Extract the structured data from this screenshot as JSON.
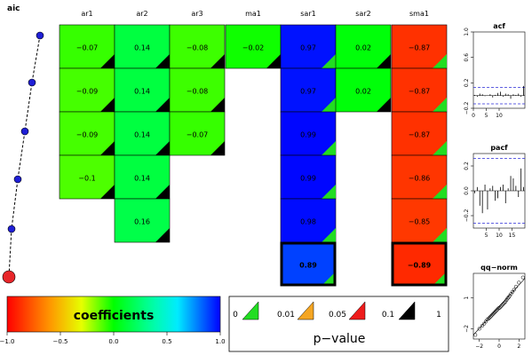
{
  "chart_data": [
    {
      "type": "line",
      "title": "aic",
      "values": [
        1,
        2,
        3,
        4,
        5,
        6
      ],
      "colors": {
        "point": "#1f1fd6",
        "best": "#e8262a"
      }
    },
    {
      "type": "heatmap",
      "columns": [
        "ar1",
        "ar2",
        "ar3",
        "ma1",
        "sar1",
        "sar2",
        "sma1"
      ],
      "rows": [
        [
          -0.07,
          0.14,
          -0.08,
          -0.02,
          0.97,
          0.02,
          -0.87
        ],
        [
          -0.09,
          0.14,
          -0.08,
          null,
          0.97,
          0.02,
          -0.87
        ],
        [
          -0.09,
          0.14,
          -0.07,
          null,
          0.99,
          null,
          -0.87
        ],
        [
          -0.1,
          0.14,
          null,
          null,
          0.99,
          null,
          -0.86
        ],
        [
          null,
          0.16,
          null,
          null,
          0.98,
          null,
          -0.85
        ],
        [
          null,
          null,
          null,
          null,
          0.89,
          null,
          -0.89
        ]
      ],
      "labels": [
        [
          "−0.07",
          "0.14",
          "−0.08",
          "−0.02",
          "0.97",
          "0.02",
          "−0.87"
        ],
        [
          "−0.09",
          "0.14",
          "−0.08",
          "",
          "0.97",
          "0.02",
          "−0.87"
        ],
        [
          "−0.09",
          "0.14",
          "−0.07",
          "",
          "0.99",
          "",
          "−0.87"
        ],
        [
          "−0.1",
          "0.14",
          "",
          "",
          "0.99",
          "",
          "−0.86"
        ],
        [
          "",
          "0.16",
          "",
          "",
          "0.98",
          "",
          "−0.85"
        ],
        [
          "",
          "",
          "",
          "",
          "0.89",
          "",
          "−0.89"
        ]
      ],
      "pvalue_class": [
        [
          "black",
          "black",
          "black",
          "black",
          "green",
          "black",
          "green"
        ],
        [
          "black",
          "black",
          "black",
          null,
          "green",
          "black",
          "green"
        ],
        [
          "black",
          "black",
          "black",
          null,
          "green",
          null,
          "green"
        ],
        [
          "black",
          "black",
          null,
          null,
          "green",
          null,
          "green"
        ],
        [
          null,
          "black",
          null,
          null,
          "green",
          null,
          "green"
        ],
        [
          null,
          null,
          null,
          null,
          "green",
          null,
          "green"
        ]
      ],
      "best_row": 5
    },
    {
      "type": "legend",
      "title": "coefficients",
      "ticks": [
        "−1.0",
        "−0.5",
        "0.0",
        "0.5",
        "1.0"
      ],
      "tick_values": [
        -1,
        -0.5,
        0,
        0.5,
        1
      ]
    },
    {
      "type": "legend",
      "title": "p−value",
      "labels": [
        "0",
        "0.01",
        "0.05",
        "0.1",
        "1"
      ],
      "colors": [
        "#22dd22",
        "#f5a623",
        "#ee1c1c",
        "#000000"
      ]
    },
    {
      "type": "bar",
      "title": "acf",
      "ylim": [
        -0.2,
        1.0
      ],
      "ytick_labels": [
        "1.0",
        "0.6",
        "0.2",
        "−0.2"
      ],
      "ytick_values": [
        1.0,
        0.6,
        0.2,
        -0.2
      ],
      "xlim": [
        0,
        20
      ],
      "xtick_labels": [
        "0",
        "5",
        "10"
      ],
      "xtick_values": [
        0,
        5,
        10
      ],
      "conf": 0.13,
      "values": [
        0.01,
        -0.02,
        0.03,
        0.02,
        -0.01,
        0.0,
        0.02,
        -0.03,
        0.01,
        0.04,
        0.06,
        -0.02,
        0.03,
        0.02,
        -0.05,
        0.02,
        0.01,
        0.03,
        -0.02,
        0.15
      ]
    },
    {
      "type": "bar",
      "title": "pacf",
      "ylim": [
        -0.3,
        0.3
      ],
      "ytick_labels": [
        "0.2",
        "0.0",
        "−0.2"
      ],
      "ytick_values": [
        0.2,
        0.0,
        -0.2
      ],
      "xlim": [
        0,
        20
      ],
      "xtick_labels": [
        "5",
        "10",
        "15"
      ],
      "xtick_values": [
        5,
        10,
        15
      ],
      "conf": 0.26,
      "values": [
        -0.02,
        0.03,
        -0.12,
        -0.18,
        0.05,
        -0.15,
        0.02,
        0.04,
        -0.08,
        -0.06,
        0.03,
        0.05,
        -0.1,
        0.02,
        0.12,
        0.1,
        0.04,
        -0.05,
        0.18,
        0.03
      ]
    },
    {
      "type": "scatter",
      "title": "qq−norm",
      "xlim": [
        -2.6,
        2.6
      ],
      "ylim": [
        -3,
        3.4
      ],
      "xtick_labels": [
        "−2",
        "0",
        "2"
      ],
      "xtick_values": [
        -2,
        0,
        2
      ],
      "ytick_labels": [
        "1",
        "−2"
      ],
      "ytick_values": [
        1,
        -2
      ],
      "x": [
        -2.4,
        -2.0,
        -1.7,
        -1.5,
        -1.35,
        -1.2,
        -1.05,
        -0.95,
        -0.85,
        -0.75,
        -0.65,
        -0.55,
        -0.45,
        -0.35,
        -0.25,
        -0.15,
        -0.05,
        0.05,
        0.15,
        0.25,
        0.35,
        0.45,
        0.55,
        0.65,
        0.75,
        0.85,
        0.95,
        1.05,
        1.2,
        1.35,
        1.5,
        1.7,
        2.0,
        2.4
      ],
      "y": [
        -2.6,
        -2.0,
        -1.7,
        -1.5,
        -1.3,
        -1.1,
        -1.0,
        -0.9,
        -0.8,
        -0.7,
        -0.6,
        -0.5,
        -0.4,
        -0.3,
        -0.2,
        -0.1,
        0.0,
        0.05,
        0.15,
        0.25,
        0.35,
        0.45,
        0.55,
        0.65,
        0.8,
        0.95,
        1.05,
        1.2,
        1.4,
        1.6,
        1.8,
        2.1,
        2.5,
        3.0
      ]
    }
  ]
}
